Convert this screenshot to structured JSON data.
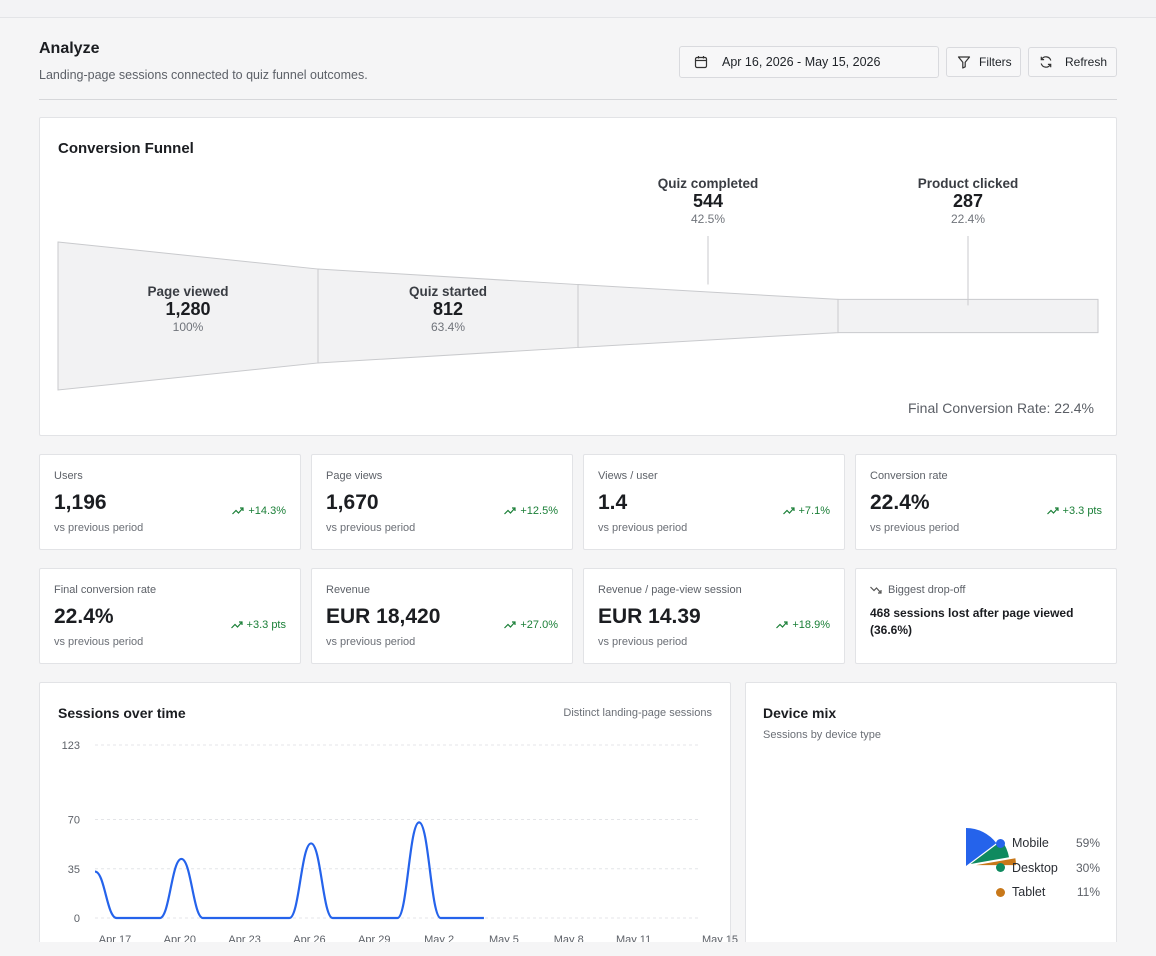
{
  "header": {
    "title": "Analyze",
    "subtitle": "Landing-page sessions connected to quiz funnel outcomes.",
    "date_range": "Apr 16, 2026 - May 15, 2026",
    "filters_label": "Filters",
    "refresh_label": "Refresh"
  },
  "funnel": {
    "title": "Conversion Funnel",
    "stages": [
      {
        "name": "Page viewed",
        "count": "1,280",
        "pct": "100%",
        "value": 1280
      },
      {
        "name": "Quiz started",
        "count": "812",
        "pct": "63.4%",
        "value": 812
      },
      {
        "name": "Quiz completed",
        "count": "544",
        "pct": "42.5%",
        "value": 544
      },
      {
        "name": "Product clicked",
        "count": "287",
        "pct": "22.4%",
        "value": 287
      }
    ],
    "final_rate": "Final Conversion Rate: 22.4%"
  },
  "kpis": [
    {
      "label": "Users",
      "value": "1,196",
      "sub": "vs previous period",
      "delta": "+14.3%"
    },
    {
      "label": "Page views",
      "value": "1,670",
      "sub": "vs previous period",
      "delta": "+12.5%"
    },
    {
      "label": "Views / user",
      "value": "1.4",
      "sub": "vs previous period",
      "delta": "+7.1%"
    },
    {
      "label": "Conversion rate",
      "value": "22.4%",
      "sub": "vs previous period",
      "delta": "+3.3 pts"
    },
    {
      "label": "Final conversion rate",
      "value": "22.4%",
      "sub": "vs previous period",
      "delta": "+3.3 pts"
    },
    {
      "label": "Revenue",
      "value": "EUR 18,420",
      "sub": "vs previous period",
      "delta": "+27.0%"
    },
    {
      "label": "Revenue / page-view session",
      "value": "EUR 14.39",
      "sub": "vs previous period",
      "delta": "+18.9%"
    }
  ],
  "dropoff": {
    "label": "Biggest drop-off",
    "text": "468 sessions lost after page viewed (36.6%)"
  },
  "sessions": {
    "title": "Sessions over time",
    "note": "Distinct landing-page sessions"
  },
  "device": {
    "title": "Device mix",
    "subtitle": "Sessions by device type",
    "items": [
      {
        "name": "Mobile",
        "pct": "59%",
        "value": 59,
        "color": "#2563eb"
      },
      {
        "name": "Desktop",
        "pct": "30%",
        "value": 30,
        "color": "#0f8a5f"
      },
      {
        "name": "Tablet",
        "pct": "11%",
        "value": 11,
        "color": "#c8781a"
      }
    ]
  },
  "colors": {
    "accent": "#2563eb",
    "positive": "#1a7f37"
  },
  "chart_data": [
    {
      "type": "line",
      "title": "Sessions over time",
      "subtitle": "Distinct landing-page sessions",
      "x_ticks": [
        "Apr 17",
        "Apr 20",
        "Apr 23",
        "Apr 26",
        "Apr 29",
        "May 2",
        "May 5",
        "May 8",
        "May 11",
        "May 15"
      ],
      "y_ticks": [
        0,
        35,
        70,
        123
      ],
      "ylim": [
        0,
        123
      ],
      "xlim": [
        "2026-04-17",
        "2026-05-15"
      ],
      "grid": true,
      "series": [
        {
          "points": [
            {
              "x": "2026-04-17",
              "y": 33
            },
            {
              "x": "2026-04-18",
              "y": 0
            },
            {
              "x": "2026-04-19",
              "y": 0
            },
            {
              "x": "2026-04-20",
              "y": 0
            },
            {
              "x": "2026-04-21",
              "y": 42
            },
            {
              "x": "2026-04-22",
              "y": 0
            },
            {
              "x": "2026-04-23",
              "y": 0
            },
            {
              "x": "2026-04-24",
              "y": 0
            },
            {
              "x": "2026-04-25",
              "y": 0
            },
            {
              "x": "2026-04-26",
              "y": 0
            },
            {
              "x": "2026-04-27",
              "y": 53
            },
            {
              "x": "2026-04-28",
              "y": 0
            },
            {
              "x": "2026-04-29",
              "y": 0
            },
            {
              "x": "2026-04-30",
              "y": 0
            },
            {
              "x": "2026-05-01",
              "y": 0
            },
            {
              "x": "2026-05-02",
              "y": 68
            },
            {
              "x": "2026-05-03",
              "y": 0
            },
            {
              "x": "2026-05-04",
              "y": 0
            },
            {
              "x": "2026-05-05",
              "y": 0
            }
          ]
        }
      ]
    },
    {
      "type": "pie",
      "title": "Device mix",
      "subtitle": "Sessions by device type",
      "categories": [
        "Mobile",
        "Desktop",
        "Tablet"
      ],
      "values": [
        59,
        30,
        11
      ],
      "legend": "right"
    }
  ]
}
